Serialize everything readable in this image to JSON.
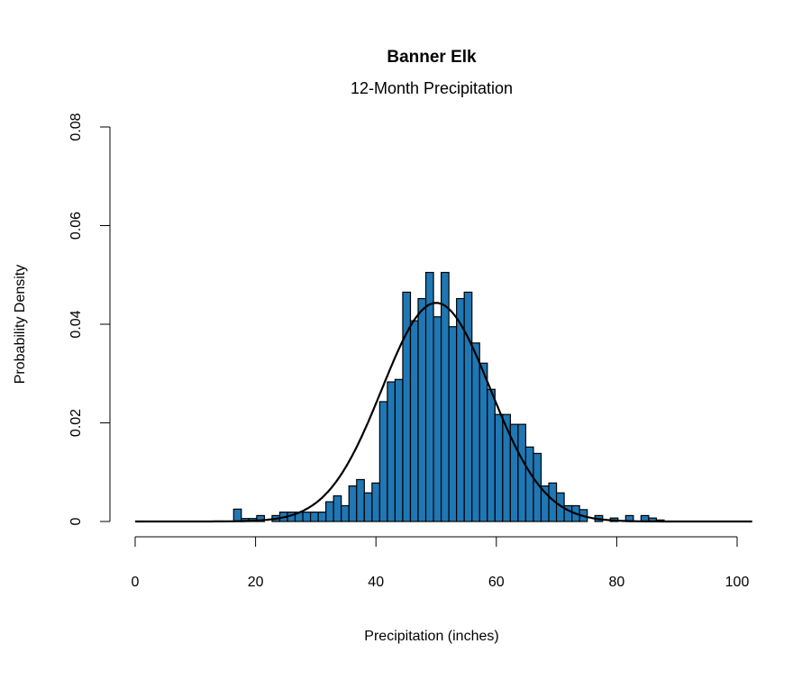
{
  "chart_data": {
    "type": "bar",
    "subtype": "histogram with normal density curve",
    "title": "Banner Elk",
    "subtitle": "12-Month Precipitation",
    "xlabel": "Precipitation (inches)",
    "ylabel": "Probability Density",
    "xlim": [
      0,
      102.5
    ],
    "ylim": [
      0,
      0.08
    ],
    "x_ticks": [
      "0",
      "20",
      "40",
      "60",
      "80",
      "100"
    ],
    "y_ticks": [
      "0",
      "0.02",
      "0.04",
      "0.06",
      "0.08"
    ],
    "grid": false,
    "bar_color": "#1f77b4",
    "bin_start": 16.36,
    "bin_width": 1.277,
    "densities": [
      0.0025,
      0.0006,
      0.0006,
      0.0012,
      0,
      0.0012,
      0.0019,
      0.0019,
      0.0019,
      0.0019,
      0.0019,
      0.0019,
      0.004,
      0.0052,
      0.0032,
      0.0072,
      0.0085,
      0.0058,
      0.0078,
      0.0243,
      0.0283,
      0.0288,
      0.0465,
      0.0407,
      0.0452,
      0.0505,
      0.0415,
      0.0505,
      0.0395,
      0.0452,
      0.0465,
      0.0362,
      0.0321,
      0.0268,
      0.0217,
      0.0217,
      0.0197,
      0.0197,
      0.0151,
      0.0138,
      0.0072,
      0.0078,
      0.0058,
      0.0032,
      0.0032,
      0.0024,
      0,
      0.0012,
      0,
      0.0007,
      0,
      0.0012,
      0,
      0.0012,
      0.0007,
      0.0003
    ],
    "normal_curve": {
      "mean": 50,
      "sd": 9.0,
      "color": "#000000"
    }
  }
}
